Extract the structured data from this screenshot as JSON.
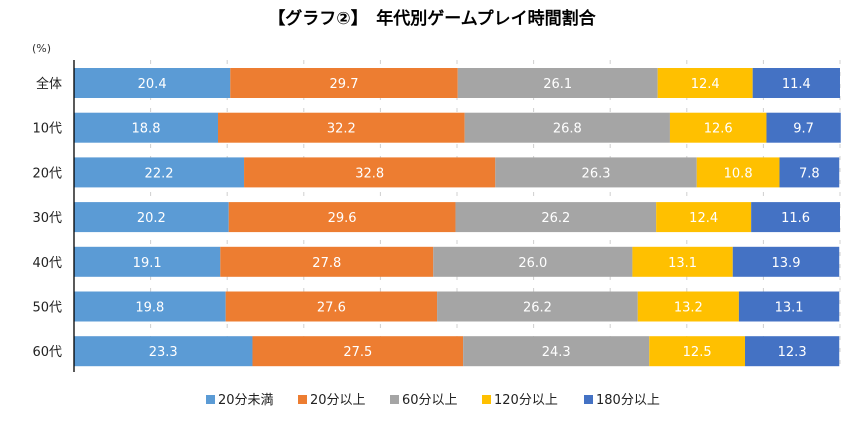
{
  "chart_data": {
    "type": "bar",
    "orientation": "horizontal",
    "stacked": true,
    "percent_stacked": true,
    "title": "【グラフ②】　年代別ゲームプレイ時間割合",
    "unit_label": "(%)",
    "xlabel": "",
    "ylabel": "",
    "xlim": [
      0,
      100
    ],
    "grid": true,
    "legend_position": "bottom",
    "categories": [
      "全体",
      "10代",
      "20代",
      "30代",
      "40代",
      "50代",
      "60代"
    ],
    "series": [
      {
        "name": "20分未満",
        "color": "#5B9BD5",
        "values": [
          20.4,
          18.8,
          22.2,
          20.2,
          19.1,
          19.8,
          23.3
        ]
      },
      {
        "name": "20分以上",
        "color": "#ED7D31",
        "values": [
          29.7,
          32.2,
          32.8,
          29.6,
          27.8,
          27.6,
          27.5
        ]
      },
      {
        "name": "60分以上",
        "color": "#A5A5A5",
        "values": [
          26.1,
          26.8,
          26.3,
          26.2,
          26.0,
          26.2,
          24.3
        ]
      },
      {
        "name": "120分以上",
        "color": "#FFC000",
        "values": [
          12.4,
          12.6,
          10.8,
          12.4,
          13.1,
          13.2,
          12.5
        ]
      },
      {
        "name": "180分以上",
        "color": "#4472C4",
        "values": [
          11.4,
          9.7,
          7.8,
          11.6,
          13.9,
          13.1,
          12.3
        ]
      }
    ],
    "data_labels": {
      "全体": [
        "20.4",
        "29.7",
        "26.1",
        "12.4",
        "11.4"
      ],
      "10代": [
        "18.8",
        "32.2",
        "26.8",
        "12.6",
        "9.7"
      ],
      "20代": [
        "22.2",
        "32.8",
        "26.3",
        "10.8",
        "7.8"
      ],
      "30代": [
        "20.2",
        "29.6",
        "26.2",
        "12.4",
        "11.6"
      ],
      "40代": [
        "19.1",
        "27.8",
        "26.0",
        "13.1",
        "13.9"
      ],
      "50代": [
        "19.8",
        "27.6",
        "26.2",
        "13.2",
        "13.1"
      ],
      "60代": [
        "23.3",
        "27.5",
        "24.3",
        "12.5",
        "12.3"
      ]
    }
  }
}
